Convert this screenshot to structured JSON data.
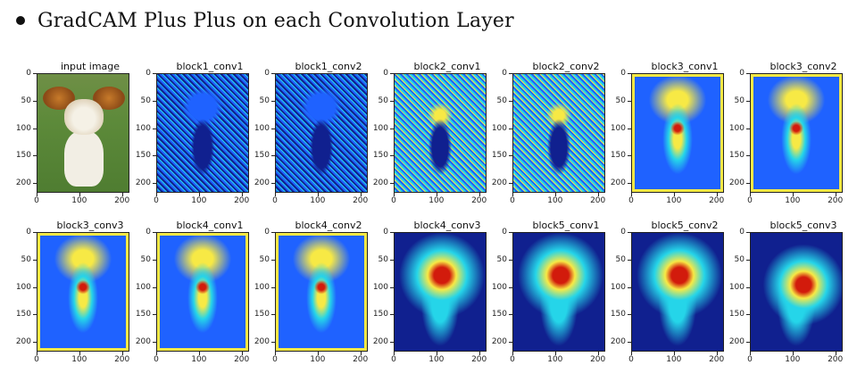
{
  "heading": {
    "title": "GradCAM Plus Plus on each Convolution Layer"
  },
  "axes": {
    "ytick_labels": [
      "0",
      "50",
      "100",
      "150",
      "200"
    ],
    "xtick_labels": [
      "0",
      "100",
      "200"
    ]
  },
  "panels": [
    {
      "title": "input image",
      "kind": "photo"
    },
    {
      "title": "block1_conv1",
      "kind": "noisy"
    },
    {
      "title": "block1_conv2",
      "kind": "noisy"
    },
    {
      "title": "block2_conv1",
      "kind": "noisy"
    },
    {
      "title": "block2_conv2",
      "kind": "noisy"
    },
    {
      "title": "block3_conv1",
      "kind": "mid"
    },
    {
      "title": "block3_conv2",
      "kind": "mid"
    },
    {
      "title": "block3_conv3",
      "kind": "mid"
    },
    {
      "title": "block4_conv1",
      "kind": "mid"
    },
    {
      "title": "block4_conv2",
      "kind": "mid"
    },
    {
      "title": "block4_conv3",
      "kind": "smooth"
    },
    {
      "title": "block5_conv1",
      "kind": "smooth"
    },
    {
      "title": "block5_conv2",
      "kind": "smooth"
    },
    {
      "title": "block5_conv3",
      "kind": "smooth"
    }
  ],
  "colormap": {
    "low": "#10208f",
    "mid_low": "#1f62ff",
    "mid": "#25d5e9",
    "mid_high": "#f7e945",
    "high": "#d21b0c"
  }
}
